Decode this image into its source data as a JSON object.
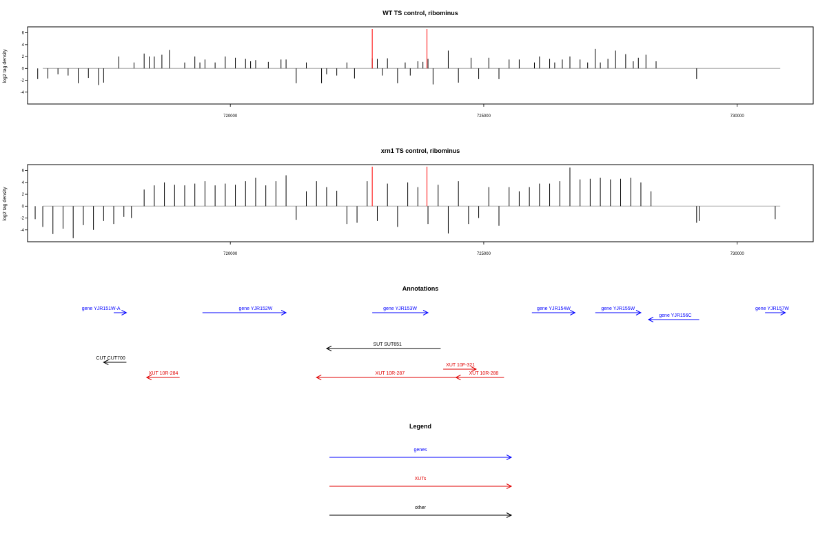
{
  "colors": {
    "gene": "#0000ff",
    "xut": "#e00000",
    "other": "#000000",
    "marker": "#ff0000",
    "baseline": "#aaaaaa",
    "bar": "#000000"
  },
  "chart_data": [
    {
      "type": "bar",
      "title": "WT TS control, ribominus",
      "ylabel": "log2 tag density",
      "xlim": [
        716000,
        731500
      ],
      "ylim": [
        -6,
        7
      ],
      "yticks": [
        "6",
        "4",
        "2",
        "0",
        "-2",
        "-4"
      ],
      "xticks": [
        "720000",
        "725000",
        "730000"
      ],
      "markers_x": [
        722800,
        723880
      ],
      "bars": {
        "x": [
          716200,
          716400,
          716600,
          716800,
          717000,
          717200,
          717400,
          717500,
          717800,
          718100,
          718300,
          718400,
          718500,
          718650,
          718800,
          719100,
          719300,
          719400,
          719500,
          719700,
          719900,
          720100,
          720300,
          720400,
          720500,
          720750,
          721000,
          721100,
          721300,
          721500,
          721800,
          721900,
          722100,
          722300,
          722450,
          722800,
          722900,
          723000,
          723100,
          723300,
          723450,
          723550,
          723700,
          723800,
          723900,
          724000,
          724300,
          724500,
          724750,
          724900,
          725100,
          725300,
          725500,
          725700,
          726000,
          726100,
          726300,
          726400,
          726550,
          726700,
          726900,
          727050,
          727200,
          727300,
          727450,
          727600,
          727800,
          727950,
          728050,
          728200,
          728400,
          729200
        ],
        "values": [
          -1.8,
          -1.7,
          -1.0,
          -1.2,
          -2.5,
          -1.6,
          -2.8,
          -2.4,
          2.0,
          1.0,
          2.5,
          2.0,
          2.0,
          2.3,
          3.1,
          1.0,
          2.0,
          1.0,
          1.5,
          1.0,
          2.0,
          1.8,
          1.6,
          1.2,
          1.4,
          1.1,
          1.5,
          1.5,
          -2.5,
          1.0,
          -2.5,
          -1.0,
          -1.2,
          1.0,
          -1.7,
          1.7,
          1.6,
          -1.2,
          1.7,
          -2.5,
          1.0,
          -1.2,
          1.2,
          1.1,
          1.6,
          -2.7,
          3.0,
          -2.4,
          1.8,
          -1.8,
          1.8,
          -1.8,
          1.5,
          1.5,
          1.0,
          2.0,
          1.6,
          1.0,
          1.5,
          2.0,
          1.5,
          1.0,
          3.3,
          1.0,
          1.6,
          3.0,
          2.4,
          1.2,
          1.8,
          2.3,
          1.2,
          -1.8
        ]
      }
    },
    {
      "type": "bar",
      "title": "xrn1 TS control, ribominus",
      "ylabel": "log2 tag density",
      "xlim": [
        716000,
        731500
      ],
      "ylim": [
        -6,
        7
      ],
      "yticks": [
        "6",
        "4",
        "2",
        "0",
        "-2",
        "-4"
      ],
      "xticks": [
        "720000",
        "725000",
        "730000"
      ],
      "markers_x": [
        722800,
        723880
      ],
      "bars": {
        "x": [
          716150,
          716300,
          716500,
          716700,
          716900,
          717100,
          717300,
          717500,
          717700,
          717900,
          718050,
          718300,
          718500,
          718700,
          718900,
          719100,
          719300,
          719500,
          719700,
          719900,
          720100,
          720300,
          720500,
          720700,
          720900,
          721100,
          721300,
          721500,
          721700,
          721900,
          722100,
          722300,
          722500,
          722700,
          722900,
          723100,
          723300,
          723500,
          723700,
          723900,
          724100,
          724300,
          724500,
          724700,
          724900,
          725100,
          725300,
          725500,
          725700,
          725900,
          726100,
          726300,
          726500,
          726700,
          726900,
          727100,
          727300,
          727500,
          727700,
          727900,
          728100,
          728300,
          729200,
          729250,
          730750
        ],
        "values": [
          -2.2,
          -3.5,
          -4.7,
          -3.8,
          -5.4,
          -3.2,
          -4.0,
          -2.5,
          -3.0,
          -1.8,
          -2.0,
          2.8,
          3.5,
          4.0,
          3.6,
          3.5,
          3.8,
          4.2,
          3.5,
          3.8,
          3.6,
          4.2,
          4.8,
          3.5,
          4.2,
          5.2,
          -2.3,
          2.5,
          4.2,
          3.2,
          2.6,
          -3.0,
          -2.8,
          4.2,
          -2.5,
          3.8,
          -3.5,
          4.0,
          3.2,
          -3.0,
          3.6,
          -4.6,
          4.2,
          -3.0,
          -2.0,
          3.2,
          -3.3,
          3.2,
          2.5,
          3.2,
          3.8,
          3.8,
          4.2,
          6.5,
          4.5,
          4.6,
          4.8,
          4.5,
          4.6,
          4.8,
          4.0,
          2.5,
          -2.8,
          -2.5,
          -2.2
        ]
      }
    }
  ],
  "annotations": {
    "title": "Annotations",
    "xlim": [
      716000,
      731500
    ],
    "features": [
      {
        "label": "gene YJR151W-A",
        "kind": "gene",
        "start": 717700,
        "end": 717950,
        "strand": "+",
        "track": 0,
        "label_x": 717450
      },
      {
        "label": "gene YJR152W",
        "kind": "gene",
        "start": 719450,
        "end": 721100,
        "strand": "+",
        "track": 0,
        "label_x": 720500
      },
      {
        "label": "gene YJR153W",
        "kind": "gene",
        "start": 722800,
        "end": 723900,
        "strand": "+",
        "track": 0,
        "label_x": 723350
      },
      {
        "label": "gene YJR154W",
        "kind": "gene",
        "start": 725950,
        "end": 726800,
        "strand": "+",
        "track": 0,
        "label_x": 726380
      },
      {
        "label": "gene YJR155W",
        "kind": "gene",
        "start": 727200,
        "end": 728100,
        "strand": "+",
        "track": 0,
        "label_x": 727650
      },
      {
        "label": "gene YJR156C",
        "kind": "gene",
        "start": 728250,
        "end": 729250,
        "strand": "-",
        "track": 1,
        "label_x": 728780
      },
      {
        "label": "gene YJR157W",
        "kind": "gene",
        "start": 730550,
        "end": 730950,
        "strand": "+",
        "track": 0,
        "label_x": 730690
      },
      {
        "label": "SUT SUT651",
        "kind": "other",
        "start": 721900,
        "end": 724150,
        "strand": "-",
        "track": 2,
        "label_x": 723100
      },
      {
        "label": "CUT CUT700",
        "kind": "other",
        "start": 717500,
        "end": 717950,
        "strand": "-",
        "track": 3,
        "label_x": 717640
      },
      {
        "label": "XUT 10R-284",
        "kind": "xut",
        "start": 718350,
        "end": 719000,
        "strand": "-",
        "track": 4,
        "label_x": 718680
      },
      {
        "label": "XUT 10R-287",
        "kind": "xut",
        "start": 721700,
        "end": 724500,
        "strand": "-",
        "track": 4,
        "label_x": 723150
      },
      {
        "label": "XUT 10F-321",
        "kind": "xut",
        "start": 724200,
        "end": 724850,
        "strand": "+",
        "track": 5,
        "label_x": 724540
      },
      {
        "label": "XUT 10R-288",
        "kind": "xut",
        "start": 724450,
        "end": 725400,
        "strand": "-",
        "track": 4,
        "label_x": 725000
      }
    ]
  },
  "legend": {
    "title": "Legend",
    "items": [
      {
        "label": "genes",
        "kind": "gene"
      },
      {
        "label": "XUTs",
        "kind": "xut"
      },
      {
        "label": "other",
        "kind": "other"
      }
    ]
  }
}
